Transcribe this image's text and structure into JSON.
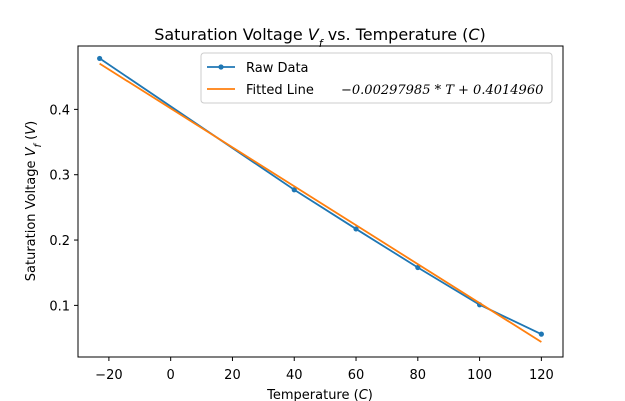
{
  "chart_data": {
    "type": "line",
    "title": "Saturation Voltage V_f vs. Temperature (C)",
    "title_parts": {
      "prefix": "Saturation Voltage ",
      "var": "V",
      "sub": "f",
      "mid": " vs. Temperature (",
      "unit": "C",
      "suffix": ")"
    },
    "xlabel": "Temperature (C)",
    "xlabel_parts": {
      "prefix": "Temperature (",
      "unit": "C",
      "suffix": ")"
    },
    "ylabel": "Saturation Voltage V_f (V)",
    "ylabel_parts": {
      "prefix": "Saturation Voltage ",
      "var": "V",
      "sub": "f",
      "mid": " (",
      "unit": "V",
      "suffix": ")"
    },
    "xlim": [
      -30,
      127
    ],
    "ylim": [
      0.021,
      0.497
    ],
    "xticks": [
      -20,
      0,
      20,
      40,
      60,
      80,
      100,
      120
    ],
    "xtick_labels": [
      "−20",
      "0",
      "20",
      "40",
      "60",
      "80",
      "100",
      "120"
    ],
    "yticks": [
      0.1,
      0.2,
      0.3,
      0.4
    ],
    "ytick_labels": [
      "0.1",
      "0.2",
      "0.3",
      "0.4"
    ],
    "grid": false,
    "legend_position": "top-center",
    "series": [
      {
        "name": "Raw Data",
        "color": "#1f77b4",
        "marker": "circle",
        "x": [
          -23,
          40,
          60,
          80,
          100,
          120
        ],
        "y": [
          0.478,
          0.277,
          0.217,
          0.158,
          0.101,
          0.056
        ]
      },
      {
        "name": "Fitted Line",
        "color": "#ff7f0e",
        "marker": "none",
        "equation": "−0.00297985 * T + 0.4014960",
        "slope": -0.00297985,
        "intercept": 0.401496,
        "x": [
          -23,
          120
        ]
      }
    ]
  }
}
